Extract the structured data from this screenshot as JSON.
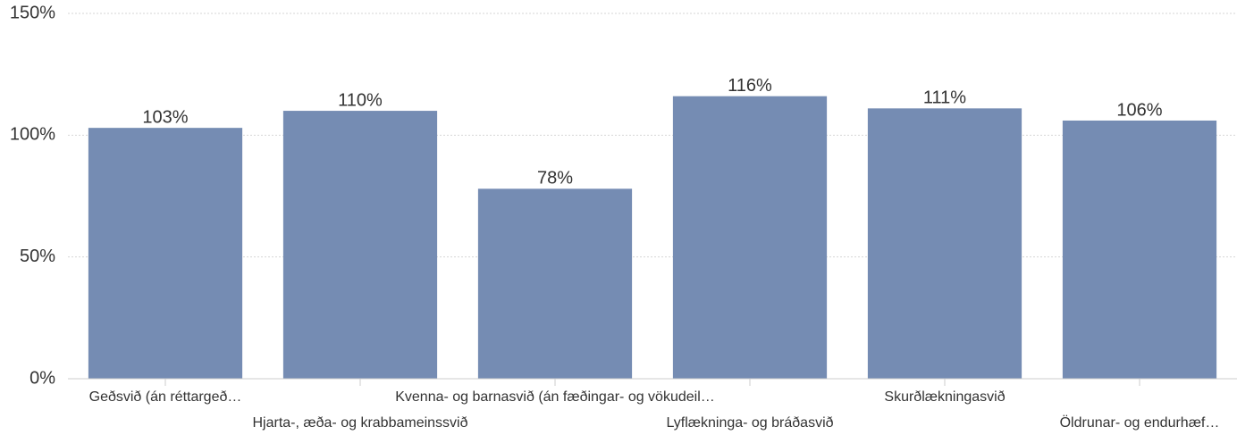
{
  "chart_data": {
    "type": "bar",
    "categories": [
      "Geðsvið (án réttargeð…",
      "Hjarta-, æða- og krabbameinssvið",
      "Kvenna- og barnasvið (án fæðingar- og vökudeil…",
      "Lyflækninga- og bráðasvið",
      "Skurðlækningasvið",
      "Öldrunar- og endurhæf…"
    ],
    "values": [
      103,
      110,
      78,
      116,
      111,
      106
    ],
    "value_labels": [
      "103%",
      "110%",
      "78%",
      "116%",
      "111%",
      "106%"
    ],
    "color": "#758cb3",
    "ylim": [
      0,
      150
    ],
    "yticks": [
      {
        "value": 0,
        "label": "0%"
      },
      {
        "value": 50,
        "label": "50%"
      },
      {
        "value": 100,
        "label": "100%"
      },
      {
        "value": 150,
        "label": "150%"
      }
    ],
    "grid": true
  }
}
